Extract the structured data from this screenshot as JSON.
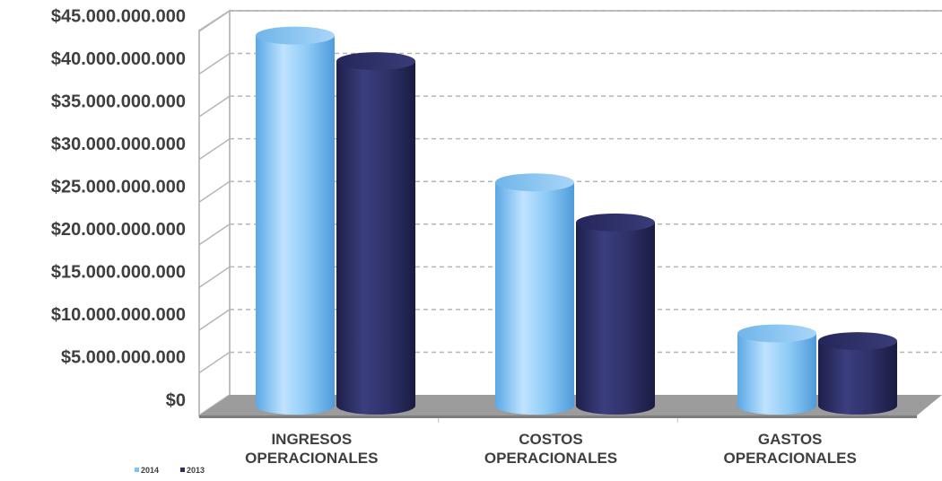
{
  "colors": {
    "series_2014": "#7ec3f5",
    "series_2013": "#2d2f66",
    "floor": "#9c9c9c",
    "grid": "#b5b5b5",
    "axis": "#bfbfbf"
  },
  "chart_data": {
    "type": "bar",
    "style": "3d-cylinder",
    "categories": [
      [
        "INGRESOS",
        "OPERACIONALES"
      ],
      [
        "COSTOS",
        "OPERACIONALES"
      ],
      [
        "GASTOS",
        "OPERACIONALES"
      ]
    ],
    "series": [
      {
        "name": "2014",
        "values": [
          44200000000,
          27000000000,
          9300000000
        ]
      },
      {
        "name": "2013",
        "values": [
          41200000000,
          22300000000,
          8400000000
        ]
      }
    ],
    "ylim": [
      0,
      45000000000
    ],
    "yticks": [
      {
        "value": 0,
        "label": "$0"
      },
      {
        "value": 5000000000,
        "label": "$5.000.000.000"
      },
      {
        "value": 10000000000,
        "label": "$10.000.000.000"
      },
      {
        "value": 15000000000,
        "label": "$15.000.000.000"
      },
      {
        "value": 20000000000,
        "label": "$20.000.000.000"
      },
      {
        "value": 25000000000,
        "label": "$25.000.000.000"
      },
      {
        "value": 30000000000,
        "label": "$30.000.000.000"
      },
      {
        "value": 35000000000,
        "label": "$35.000.000.000"
      },
      {
        "value": 40000000000,
        "label": "$40.000.000.000"
      },
      {
        "value": 45000000000,
        "label": "$45.000.000.000"
      }
    ],
    "grid": true,
    "grid_style": "dashed",
    "legend_position": "bottom-left",
    "title": "",
    "xlabel": "",
    "ylabel": ""
  }
}
